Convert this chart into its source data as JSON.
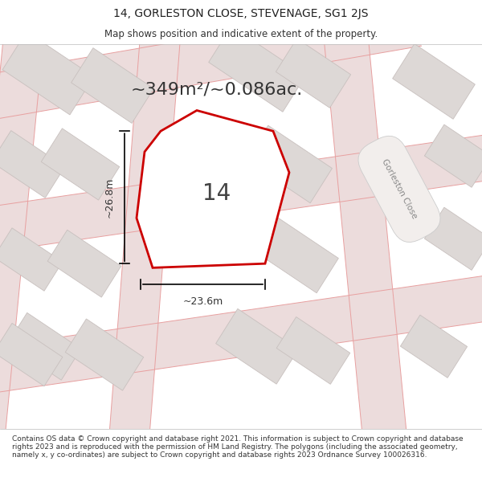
{
  "title": "14, GORLESTON CLOSE, STEVENAGE, SG1 2JS",
  "subtitle": "Map shows position and indicative extent of the property.",
  "area_text": "~349m²/~0.086ac.",
  "property_number": "14",
  "dim_width": "~23.6m",
  "dim_height": "~26.8m",
  "footer_text": "Contains OS data © Crown copyright and database right 2021. This information is subject to Crown copyright and database rights 2023 and is reproduced with the permission of HM Land Registry. The polygons (including the associated geometry, namely x, y co-ordinates) are subject to Crown copyright and database rights 2023 Ordnance Survey 100026316.",
  "street_label": "Gorleston Close",
  "map_bg": "#f2eeec",
  "road_fill": "#ecdcdc",
  "road_line": "#e8a0a0",
  "building_fill": "#ddd8d6",
  "building_edge": "#c8c0be",
  "plot_fill": "#ffffff",
  "plot_edge": "#cc0000",
  "title_fontsize": 10,
  "subtitle_fontsize": 8.5,
  "area_fontsize": 16,
  "number_fontsize": 20,
  "dim_fontsize": 9,
  "footer_fontsize": 6.5
}
